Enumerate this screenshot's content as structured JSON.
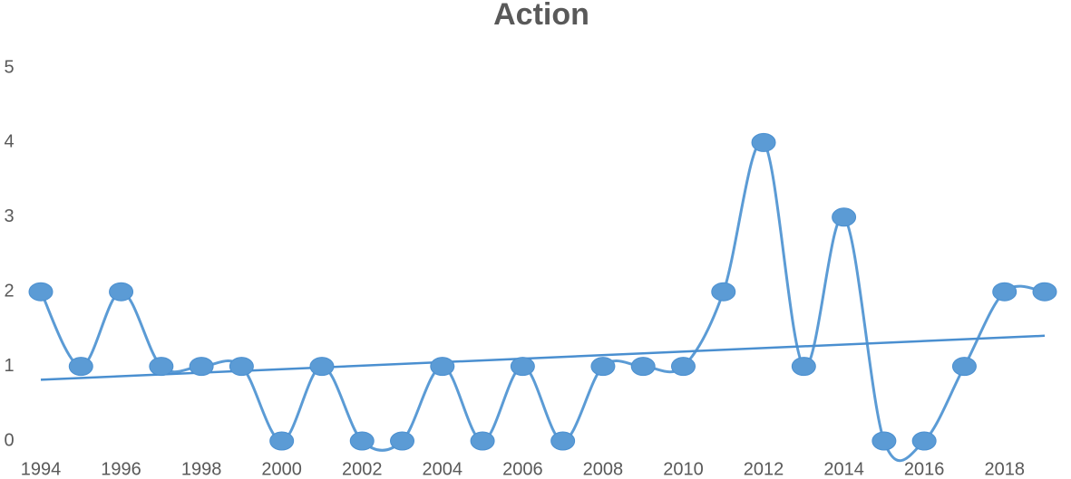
{
  "chart_data": {
    "type": "line",
    "title": "Action",
    "categories": [
      "1994",
      null,
      "1996",
      null,
      "1998",
      null,
      "2000",
      null,
      "2002",
      null,
      "2004",
      null,
      "2006",
      null,
      "2008",
      null,
      "2010",
      null,
      "2012",
      null,
      "2014",
      null,
      "2016",
      null,
      "2018",
      null
    ],
    "series": [
      {
        "name": "Action",
        "color": "#5b9bd5",
        "values": [
          2,
          1,
          2,
          1,
          1,
          1,
          0,
          1,
          0,
          0,
          1,
          0,
          1,
          0,
          1,
          1,
          1,
          2,
          4,
          1,
          3,
          0,
          0,
          1,
          2,
          2
        ]
      }
    ],
    "smooth": true,
    "trendline": "linear",
    "trendline_color": "#4a8fd0",
    "ylim": [
      0,
      5
    ],
    "yticks": [
      0,
      1,
      2,
      3,
      4,
      5
    ],
    "grid": false
  }
}
